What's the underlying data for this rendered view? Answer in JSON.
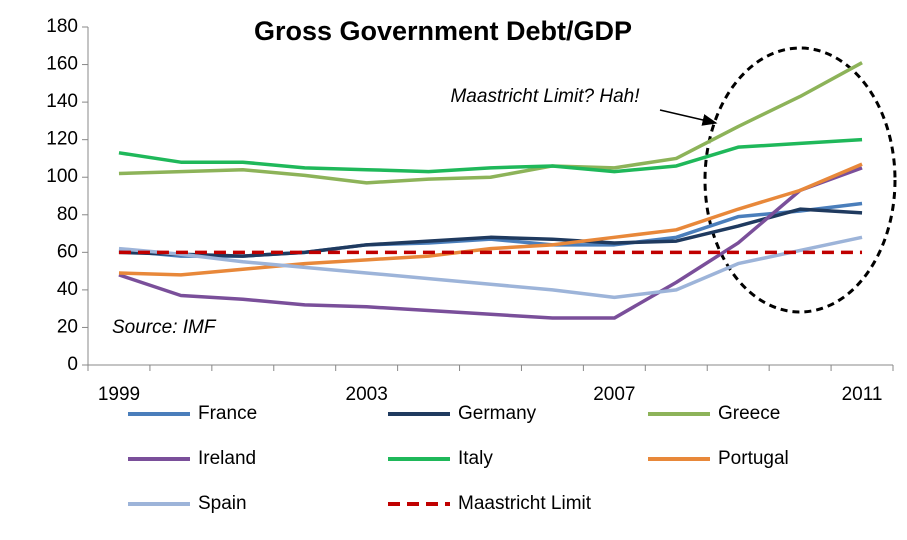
{
  "chart_data": {
    "type": "line",
    "title": "Gross Government Debt/GDP",
    "annotations": [
      "Maastricht Limit? Hah!",
      "Source: IMF"
    ],
    "categories": [
      "1999",
      null,
      null,
      null,
      "2003",
      null,
      null,
      null,
      "2007",
      null,
      null,
      null,
      "2011"
    ],
    "ylim": [
      0,
      180
    ],
    "yticks": [
      0,
      20,
      40,
      60,
      80,
      100,
      120,
      140,
      160,
      180
    ],
    "grid": false,
    "series": [
      {
        "name": "France",
        "color": "#4a7ebb",
        "values": [
          61,
          58,
          58,
          60,
          64,
          65,
          67,
          64,
          64,
          68,
          79,
          82,
          86
        ]
      },
      {
        "name": "Germany",
        "color": "#1f3a5f",
        "values": [
          60,
          59,
          58,
          60,
          64,
          66,
          68,
          67,
          65,
          66,
          74,
          83,
          81
        ]
      },
      {
        "name": "Greece",
        "color": "#8db359",
        "values": [
          102,
          103,
          104,
          101,
          97,
          99,
          100,
          106,
          105,
          110,
          127,
          143,
          161
        ]
      },
      {
        "name": "Ireland",
        "color": "#7a4f9a",
        "values": [
          48,
          37,
          35,
          32,
          31,
          29,
          27,
          25,
          25,
          44,
          65,
          93,
          105
        ]
      },
      {
        "name": "Italy",
        "color": "#1fb85a",
        "values": [
          113,
          108,
          108,
          105,
          104,
          103,
          105,
          106,
          103,
          106,
          116,
          118,
          120
        ]
      },
      {
        "name": "Portugal",
        "color": "#e8883a",
        "values": [
          49,
          48,
          51,
          54,
          56,
          58,
          62,
          64,
          68,
          72,
          83,
          93,
          107
        ]
      },
      {
        "name": "Spain",
        "color": "#9db4d9",
        "values": [
          62,
          59,
          55,
          52,
          49,
          46,
          43,
          40,
          36,
          40,
          54,
          61,
          68
        ]
      },
      {
        "name": "Maastricht Limit",
        "color": "#c00000",
        "dashed": true,
        "values": [
          60,
          60,
          60,
          60,
          60,
          60,
          60,
          60,
          60,
          60,
          60,
          60,
          60
        ]
      }
    ]
  }
}
